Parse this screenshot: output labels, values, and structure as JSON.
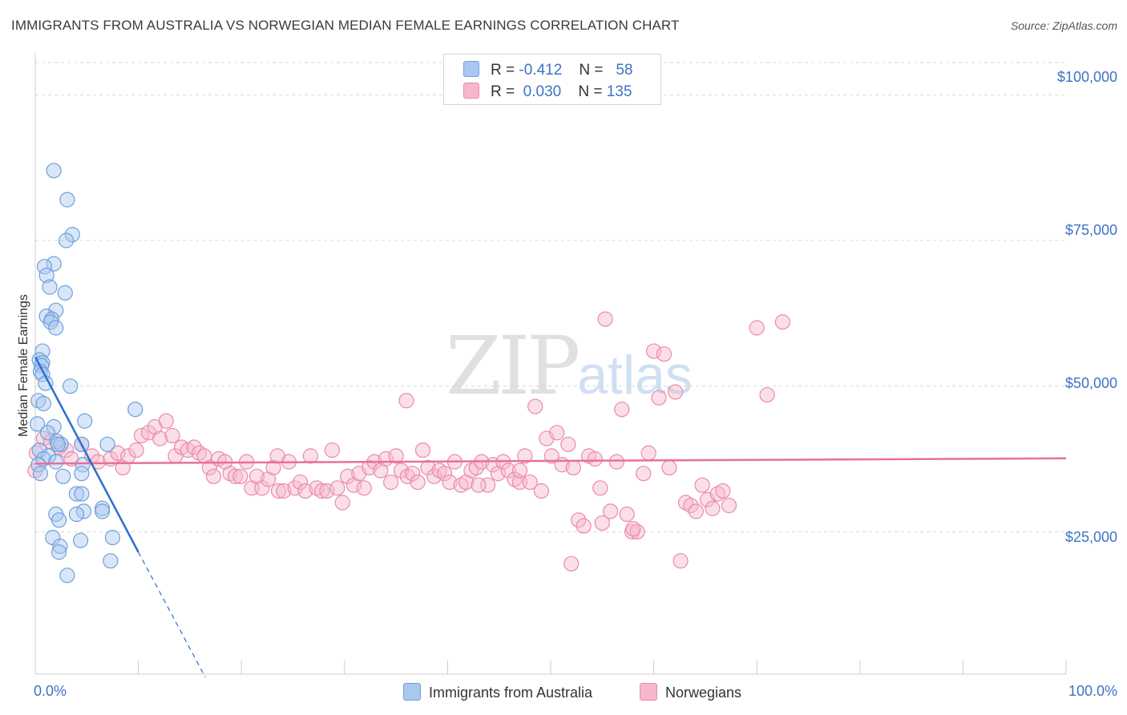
{
  "header": {
    "title": "IMMIGRANTS FROM AUSTRALIA VS NORWEGIAN MEDIAN FEMALE EARNINGS CORRELATION CHART",
    "source": "Source: ZipAtlas.com"
  },
  "watermark": {
    "zip": "ZIP",
    "atlas": "atlas"
  },
  "legend": {
    "rows": [
      {
        "r_label": "R =",
        "r_value": "-0.412",
        "n_label": "N =",
        "n_value": "58"
      },
      {
        "r_label": "R =",
        "r_value": "0.030",
        "n_label": "N =",
        "n_value": "135"
      }
    ]
  },
  "bottom_legend": [
    "Immigrants from Australia",
    "Norwegians"
  ],
  "colors": {
    "blue_fill": "#a9c8ef",
    "blue_stroke": "#6f9fdc",
    "blue_line": "#2a6fd0",
    "pink_fill": "#f6b7cc",
    "pink_stroke": "#ea8aab",
    "pink_line": "#e8709a",
    "tick_text": "#3d73c4",
    "grid": "#d8d8d8"
  },
  "chart_data": {
    "type": "scatter",
    "title": "IMMIGRANTS FROM AUSTRALIA VS NORWEGIAN MEDIAN FEMALE EARNINGS CORRELATION CHART",
    "xlabel": "",
    "ylabel": "Median Female Earnings",
    "xlim": [
      0,
      100
    ],
    "ylim": [
      0,
      105000
    ],
    "x_tick_labels": [
      "0.0%",
      "100.0%"
    ],
    "y_ticks": [
      {
        "value": 25000,
        "label": "$25,000"
      },
      {
        "value": 50000,
        "label": "$50,000"
      },
      {
        "value": 75000,
        "label": "$75,000"
      },
      {
        "value": 100000,
        "label": "$100,000"
      }
    ],
    "grid": true,
    "legend_position": "top-center",
    "series": [
      {
        "name": "Immigrants from Australia",
        "r": -0.412,
        "n": 58,
        "trend": {
          "x0": 0,
          "y0": 55000,
          "x1": 10,
          "y1": 21500,
          "dash_to_x": 16.5,
          "dash_to_y": 0
        },
        "points": [
          [
            1.8,
            87000
          ],
          [
            3.1,
            82000
          ],
          [
            3.6,
            76000
          ],
          [
            3.0,
            75000
          ],
          [
            1.8,
            71000
          ],
          [
            0.9,
            70500
          ],
          [
            1.1,
            69000
          ],
          [
            1.4,
            67000
          ],
          [
            2.9,
            66000
          ],
          [
            2.0,
            63000
          ],
          [
            1.1,
            62000
          ],
          [
            1.6,
            61500
          ],
          [
            1.5,
            61000
          ],
          [
            2.0,
            60000
          ],
          [
            0.7,
            56000
          ],
          [
            0.4,
            54500
          ],
          [
            0.7,
            54000
          ],
          [
            0.6,
            53500
          ],
          [
            0.5,
            52500
          ],
          [
            0.7,
            52000
          ],
          [
            1.0,
            50500
          ],
          [
            3.4,
            50000
          ],
          [
            0.3,
            47500
          ],
          [
            0.8,
            47000
          ],
          [
            9.7,
            46000
          ],
          [
            4.8,
            44000
          ],
          [
            0.2,
            43500
          ],
          [
            1.8,
            43000
          ],
          [
            1.2,
            42000
          ],
          [
            2.1,
            40500
          ],
          [
            2.5,
            40000
          ],
          [
            4.5,
            40000
          ],
          [
            7.0,
            40000
          ],
          [
            0.4,
            39000
          ],
          [
            1.3,
            38000
          ],
          [
            0.8,
            37500
          ],
          [
            2.0,
            37000
          ],
          [
            4.6,
            36500
          ],
          [
            0.3,
            36500
          ],
          [
            0.5,
            35000
          ],
          [
            4.5,
            35000
          ],
          [
            2.7,
            34500
          ],
          [
            4.0,
            31500
          ],
          [
            4.5,
            31500
          ],
          [
            6.5,
            29000
          ],
          [
            4.7,
            28500
          ],
          [
            6.5,
            28500
          ],
          [
            4.0,
            28000
          ],
          [
            2.0,
            28000
          ],
          [
            2.3,
            27000
          ],
          [
            1.7,
            24000
          ],
          [
            7.5,
            24000
          ],
          [
            4.4,
            23500
          ],
          [
            2.4,
            22500
          ],
          [
            2.3,
            21500
          ],
          [
            7.3,
            20000
          ],
          [
            3.1,
            17500
          ],
          [
            2.2,
            40000
          ]
        ]
      },
      {
        "name": "Norwegians",
        "r": 0.03,
        "n": 135,
        "trend": {
          "x0": 0,
          "y0": 36700,
          "x1": 100,
          "y1": 37600
        },
        "points": [
          [
            0.0,
            35500
          ],
          [
            0.1,
            38500
          ],
          [
            0.8,
            41000
          ],
          [
            1.5,
            40500
          ],
          [
            2.3,
            39500
          ],
          [
            3.0,
            39000
          ],
          [
            3.5,
            37500
          ],
          [
            4.5,
            40000
          ],
          [
            5.5,
            38000
          ],
          [
            6.1,
            37000
          ],
          [
            7.3,
            37500
          ],
          [
            8.0,
            38500
          ],
          [
            8.5,
            36000
          ],
          [
            9.0,
            38000
          ],
          [
            9.8,
            39000
          ],
          [
            10.3,
            41500
          ],
          [
            11.0,
            42000
          ],
          [
            11.6,
            43000
          ],
          [
            12.1,
            41000
          ],
          [
            12.7,
            44000
          ],
          [
            13.3,
            41500
          ],
          [
            13.6,
            38000
          ],
          [
            14.2,
            39500
          ],
          [
            14.8,
            39000
          ],
          [
            15.4,
            39500
          ],
          [
            15.9,
            38500
          ],
          [
            16.4,
            38000
          ],
          [
            16.9,
            36000
          ],
          [
            17.3,
            34500
          ],
          [
            17.8,
            37500
          ],
          [
            18.4,
            37000
          ],
          [
            18.9,
            35000
          ],
          [
            19.4,
            34500
          ],
          [
            19.9,
            34500
          ],
          [
            20.5,
            37000
          ],
          [
            21.0,
            32500
          ],
          [
            21.5,
            34500
          ],
          [
            22.0,
            32500
          ],
          [
            22.6,
            34000
          ],
          [
            23.1,
            36000
          ],
          [
            23.6,
            32000
          ],
          [
            24.1,
            32000
          ],
          [
            24.6,
            37000
          ],
          [
            25.2,
            32500
          ],
          [
            25.7,
            33500
          ],
          [
            26.2,
            32000
          ],
          [
            26.7,
            38000
          ],
          [
            27.3,
            32500
          ],
          [
            27.8,
            32000
          ],
          [
            28.3,
            32000
          ],
          [
            28.8,
            39000
          ],
          [
            29.3,
            32500
          ],
          [
            29.8,
            30000
          ],
          [
            30.3,
            34500
          ],
          [
            30.9,
            33000
          ],
          [
            31.4,
            35000
          ],
          [
            31.9,
            32500
          ],
          [
            32.4,
            36000
          ],
          [
            32.9,
            37000
          ],
          [
            33.5,
            35500
          ],
          [
            34.0,
            37500
          ],
          [
            34.5,
            33500
          ],
          [
            35.0,
            38000
          ],
          [
            35.5,
            35500
          ],
          [
            36.1,
            34500
          ],
          [
            36.6,
            35000
          ],
          [
            37.1,
            33500
          ],
          [
            37.6,
            39000
          ],
          [
            38.1,
            36000
          ],
          [
            38.7,
            34500
          ],
          [
            39.2,
            35500
          ],
          [
            39.7,
            35000
          ],
          [
            40.2,
            33500
          ],
          [
            40.7,
            37000
          ],
          [
            41.3,
            33000
          ],
          [
            41.8,
            33500
          ],
          [
            42.3,
            35500
          ],
          [
            42.8,
            36000
          ],
          [
            43.3,
            37000
          ],
          [
            43.9,
            33000
          ],
          [
            44.4,
            36500
          ],
          [
            44.9,
            35000
          ],
          [
            45.4,
            37000
          ],
          [
            45.9,
            35500
          ],
          [
            46.5,
            34000
          ],
          [
            47.0,
            33500
          ],
          [
            47.5,
            38000
          ],
          [
            48.0,
            33500
          ],
          [
            48.5,
            46500
          ],
          [
            49.1,
            32000
          ],
          [
            49.6,
            41000
          ],
          [
            50.1,
            38000
          ],
          [
            50.6,
            42000
          ],
          [
            51.1,
            36500
          ],
          [
            51.7,
            40000
          ],
          [
            52.2,
            36000
          ],
          [
            52.7,
            27000
          ],
          [
            53.2,
            26000
          ],
          [
            53.7,
            38000
          ],
          [
            54.3,
            37500
          ],
          [
            54.8,
            32500
          ],
          [
            55.3,
            61500
          ],
          [
            55.8,
            28500
          ],
          [
            56.4,
            37000
          ],
          [
            56.9,
            46000
          ],
          [
            57.4,
            28000
          ],
          [
            57.9,
            25000
          ],
          [
            58.4,
            25000
          ],
          [
            59.0,
            35000
          ],
          [
            59.5,
            38500
          ],
          [
            60.0,
            56000
          ],
          [
            60.5,
            48000
          ],
          [
            61.0,
            55500
          ],
          [
            61.5,
            36000
          ],
          [
            62.1,
            49000
          ],
          [
            62.6,
            20000
          ],
          [
            63.1,
            30000
          ],
          [
            63.6,
            29500
          ],
          [
            64.1,
            28500
          ],
          [
            64.7,
            33000
          ],
          [
            65.2,
            30500
          ],
          [
            65.7,
            29000
          ],
          [
            66.2,
            31500
          ],
          [
            66.7,
            32000
          ],
          [
            67.3,
            29500
          ],
          [
            70.0,
            60000
          ],
          [
            71.0,
            48500
          ],
          [
            72.5,
            61000
          ],
          [
            52.0,
            19500
          ],
          [
            36.0,
            47500
          ],
          [
            47.0,
            35500
          ],
          [
            43.0,
            33000
          ],
          [
            55.0,
            26500
          ],
          [
            58.0,
            25500
          ],
          [
            23.5,
            38000
          ]
        ]
      }
    ]
  }
}
